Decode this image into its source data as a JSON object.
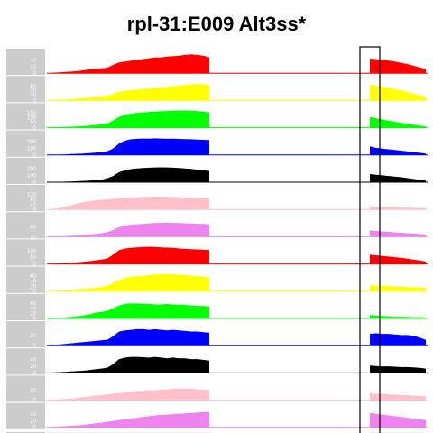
{
  "chart_data": {
    "type": "area",
    "title": "rpl-31:E009 Alt3ss*",
    "description_note": "",
    "highlight_box": true,
    "panels": [
      {
        "color": "#ff0000",
        "ticks": [
          "40",
          "20",
          "0"
        ],
        "ymax": 48,
        "profile_left": [
          0,
          1,
          2,
          3,
          4,
          5,
          7,
          9,
          10,
          12,
          13,
          20,
          26,
          28,
          30,
          32,
          34,
          36,
          38,
          38,
          40,
          41,
          42,
          44,
          45,
          44,
          42,
          38
        ],
        "profile_right": [
          35,
          34,
          32,
          30,
          28,
          25,
          22,
          18,
          14,
          10
        ]
      },
      {
        "color": "#ffff00",
        "ticks": [
          "60",
          "40",
          "20",
          "0"
        ],
        "ymax": 70,
        "profile_left": [
          0,
          1,
          2,
          3,
          4,
          6,
          8,
          10,
          12,
          14,
          16,
          22,
          30,
          34,
          36,
          38,
          40,
          42,
          44,
          46,
          48,
          50,
          52,
          54,
          56,
          58,
          57,
          55
        ],
        "profile_right": [
          55,
          52,
          48,
          44,
          40,
          36,
          30,
          24,
          18,
          12
        ]
      },
      {
        "color": "#00ff00",
        "ticks": [
          "150",
          "100",
          "50",
          "0"
        ],
        "ymax": 170,
        "profile_left": [
          0,
          2,
          4,
          6,
          8,
          10,
          14,
          18,
          22,
          28,
          34,
          60,
          90,
          110,
          120,
          126,
          130,
          134,
          138,
          140,
          142,
          144,
          145,
          146,
          144,
          140,
          136,
          130
        ],
        "profile_right": [
          90,
          80,
          70,
          60,
          50,
          42,
          34,
          26,
          18,
          10
        ]
      },
      {
        "color": "#0000ff",
        "ticks": [
          "200",
          "100",
          "0"
        ],
        "ymax": 280,
        "profile_left": [
          0,
          2,
          4,
          8,
          12,
          16,
          20,
          26,
          32,
          40,
          50,
          90,
          160,
          200,
          220,
          226,
          230,
          228,
          232,
          230,
          226,
          228,
          224,
          222,
          220,
          216,
          212,
          208
        ],
        "profile_right": [
          120,
          100,
          90,
          80,
          70,
          60,
          50,
          40,
          30,
          20
        ]
      },
      {
        "color": "#000000",
        "ticks": [
          "200",
          "100",
          "0"
        ],
        "ymax": 320,
        "profile_left": [
          0,
          2,
          4,
          8,
          12,
          16,
          20,
          26,
          32,
          40,
          60,
          100,
          160,
          190,
          210,
          220,
          228,
          232,
          236,
          238,
          236,
          232,
          226,
          220,
          212,
          200,
          190,
          180
        ],
        "profile_right": [
          130,
          120,
          110,
          100,
          90,
          80,
          66,
          52,
          40,
          28
        ]
      },
      {
        "color": "#ffc0cb",
        "ticks": [
          "120",
          "80",
          "40",
          "0"
        ],
        "ymax": 150,
        "profile_left": [
          0,
          4,
          10,
          20,
          32,
          44,
          54,
          62,
          68,
          72,
          76,
          80,
          84,
          88,
          90,
          92,
          94,
          95,
          96,
          96,
          95,
          94,
          92,
          90,
          88,
          86,
          84,
          80
        ],
        "profile_right": [
          20,
          18,
          17,
          16,
          15,
          14,
          13,
          12,
          11,
          10
        ]
      },
      {
        "color": "#ee82ee",
        "ticks": [
          "60",
          "20"
        ],
        "ymax": 90,
        "profile_left": [
          0,
          1,
          2,
          3,
          4,
          6,
          8,
          10,
          12,
          16,
          20,
          30,
          42,
          50,
          54,
          56,
          58,
          60,
          62,
          62,
          63,
          62,
          62,
          60,
          60,
          58,
          58,
          55
        ],
        "profile_right": [
          28,
          26,
          24,
          22,
          20,
          18,
          16,
          14,
          12,
          10
        ]
      },
      {
        "color": "#ff0000",
        "ticks": [
          "100",
          "50",
          "0"
        ],
        "ymax": 130,
        "profile_left": [
          0,
          2,
          4,
          6,
          8,
          10,
          14,
          18,
          22,
          28,
          34,
          60,
          90,
          100,
          104,
          108,
          110,
          112,
          110,
          108,
          106,
          104,
          100,
          98,
          96,
          94,
          92,
          90
        ],
        "profile_right": [
          60,
          56,
          52,
          48,
          44,
          40,
          34,
          28,
          22,
          16
        ]
      },
      {
        "color": "#ffff00",
        "ticks": [
          "60",
          "40",
          "20",
          "0"
        ],
        "ymax": 75,
        "profile_left": [
          0,
          1,
          2,
          3,
          4,
          6,
          8,
          10,
          12,
          16,
          20,
          30,
          42,
          50,
          54,
          56,
          58,
          60,
          62,
          63,
          64,
          63,
          62,
          60,
          58,
          56,
          54,
          52
        ],
        "profile_right": [
          22,
          21,
          20,
          19,
          18,
          17,
          16,
          15,
          14,
          13
        ]
      },
      {
        "color": "#00ff00",
        "ticks": [
          "60",
          "40",
          "20",
          "0"
        ],
        "ymax": 80,
        "profile_left": [
          0,
          1,
          2,
          4,
          6,
          8,
          12,
          16,
          22,
          26,
          30,
          40,
          52,
          58,
          60,
          60,
          58,
          58,
          56,
          56,
          58,
          56,
          54,
          54,
          52,
          50,
          50,
          48
        ],
        "profile_right": [
          14,
          12,
          10,
          8,
          7,
          6,
          6,
          5,
          5,
          4
        ]
      },
      {
        "color": "#0000ff",
        "ticks": [
          "20",
          "0"
        ],
        "ymax": 34,
        "profile_left": [
          0,
          1,
          2,
          3,
          4,
          5,
          6,
          7,
          8,
          9,
          10,
          16,
          24,
          26,
          27,
          28,
          28,
          27,
          28,
          27,
          26,
          27,
          26,
          25,
          24,
          24,
          23,
          22
        ],
        "profile_right": [
          20,
          21,
          20,
          20,
          19,
          18,
          18,
          17,
          14,
          10
        ]
      },
      {
        "color": "#000000",
        "ticks": [
          "40",
          "20",
          "0"
        ],
        "ymax": 55,
        "profile_left": [
          0,
          1,
          2,
          3,
          4,
          5,
          6,
          8,
          10,
          12,
          14,
          24,
          38,
          42,
          44,
          44,
          43,
          42,
          44,
          42,
          40,
          42,
          40,
          40,
          38,
          38,
          36,
          34
        ],
        "profile_right": [
          20,
          19,
          18,
          18,
          17,
          16,
          16,
          15,
          14,
          12
        ]
      },
      {
        "color": "#ffc0cb",
        "ticks": [
          "20",
          "0"
        ],
        "ymax": 28,
        "profile_left": [
          0,
          0.5,
          1,
          1.5,
          2,
          3,
          4,
          5,
          6,
          7,
          8,
          9,
          10,
          11,
          12,
          13,
          13,
          14,
          14,
          15,
          15,
          16,
          16,
          16,
          16,
          15,
          15,
          14
        ],
        "profile_right": [
          10,
          9,
          9,
          8,
          8,
          7,
          7,
          6,
          6,
          5
        ]
      },
      {
        "color": "#ee82ee",
        "ticks": [
          "40",
          "20",
          "0"
        ],
        "ymax": 50,
        "profile_left": [
          0,
          1,
          2,
          3,
          4,
          5,
          6,
          8,
          10,
          12,
          14,
          16,
          18,
          20,
          22,
          24,
          26,
          28,
          30,
          31,
          32,
          33,
          34,
          35,
          36,
          37,
          38,
          38
        ],
        "profile_right": [
          36,
          34,
          32,
          30,
          28,
          26,
          24,
          22,
          20,
          18
        ]
      }
    ]
  }
}
